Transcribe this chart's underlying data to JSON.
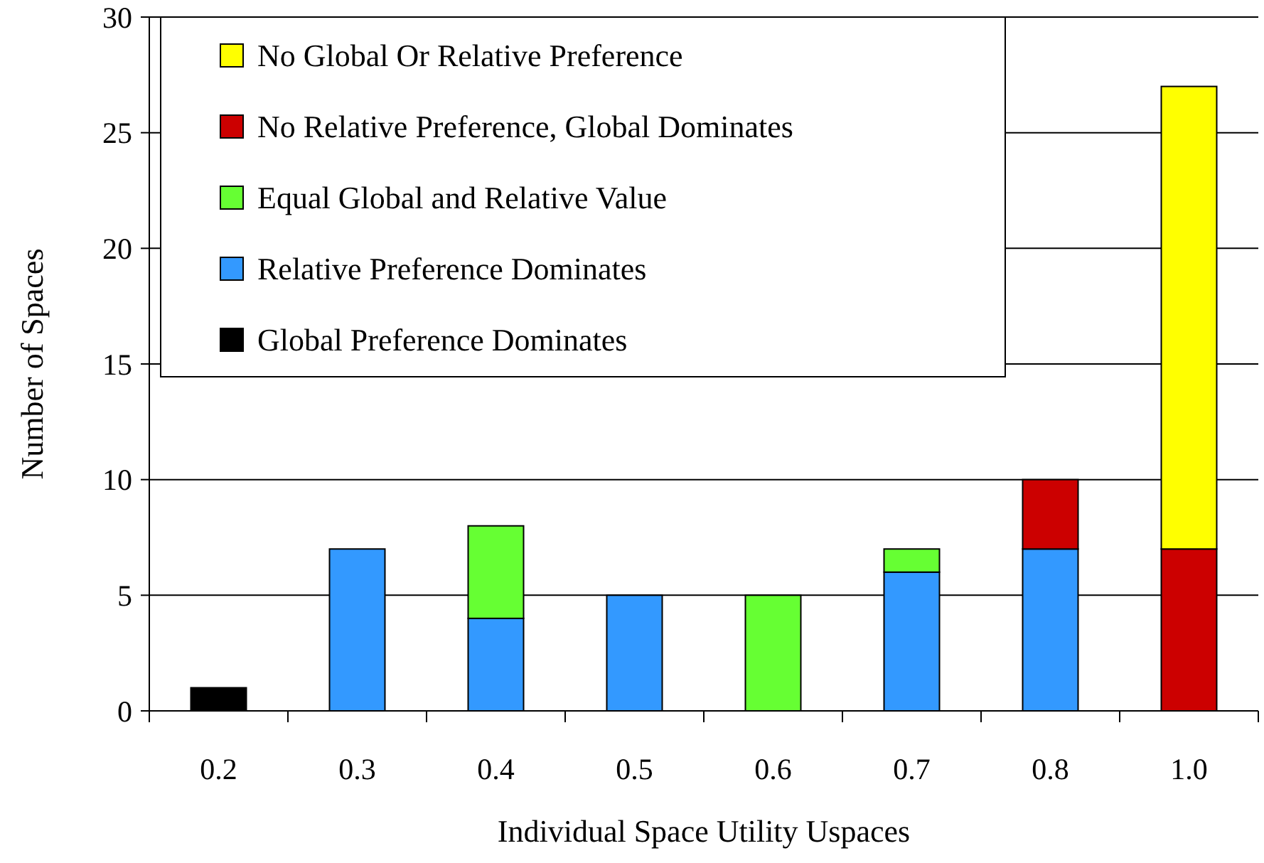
{
  "chart_data": {
    "type": "bar",
    "stacked": true,
    "xlabel": "Individual Space Utility Uspaces",
    "ylabel": "Number of Spaces",
    "categories": [
      "0.2",
      "0.3",
      "0.4",
      "0.5",
      "0.6",
      "0.7",
      "0.8",
      "1.0"
    ],
    "series": [
      {
        "name": "Global Preference Dominates",
        "color": "#000000",
        "values": [
          1,
          null,
          null,
          null,
          null,
          null,
          null,
          null
        ]
      },
      {
        "name": "Relative Preference Dominates",
        "color": "#3399ff",
        "values": [
          null,
          7,
          4,
          5,
          null,
          6,
          7,
          null
        ]
      },
      {
        "name": "Equal Global and Relative Value",
        "color": "#66ff33",
        "values": [
          null,
          null,
          4,
          null,
          5,
          1,
          null,
          null
        ]
      },
      {
        "name": "No Relative Preference, Global Dominates",
        "color": "#cc0000",
        "values": [
          null,
          null,
          null,
          null,
          null,
          null,
          3,
          7
        ]
      },
      {
        "name": "No Global Or Relative Preference",
        "color": "#ffff00",
        "values": [
          null,
          null,
          null,
          null,
          null,
          null,
          null,
          20
        ]
      }
    ],
    "ylim": [
      0,
      30
    ],
    "yticks": [
      0,
      5,
      10,
      15,
      20,
      25,
      30
    ],
    "grid": "y",
    "legend": "top left"
  }
}
